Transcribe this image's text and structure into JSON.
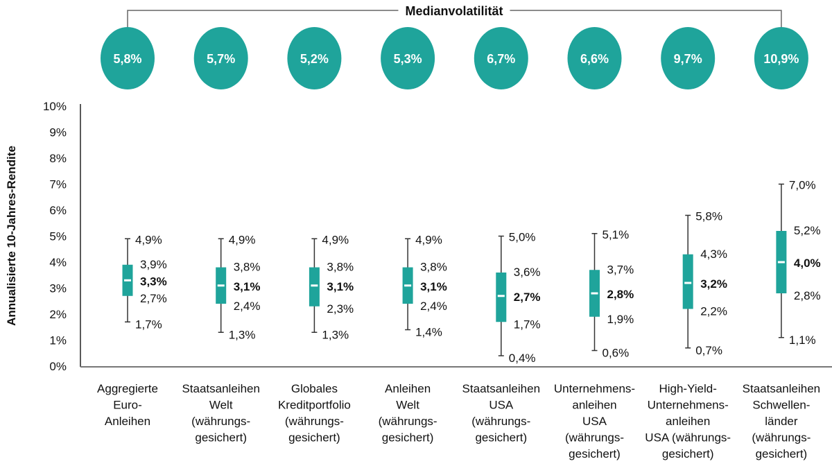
{
  "chart_data": {
    "type": "boxplot",
    "ylabel": "Annualisierte 10-Jahres-Rendite",
    "ylim": [
      0,
      10
    ],
    "yticks": [
      "0%",
      "1%",
      "2%",
      "3%",
      "4%",
      "5%",
      "6%",
      "7%",
      "8%",
      "9%",
      "10%"
    ],
    "grid": false,
    "color": "#1fa49b",
    "volatility_title": "Medianvolatilität",
    "categories": [
      [
        "Aggregierte",
        "Euro-",
        "Anleihen"
      ],
      [
        "Staatsanleihen",
        "Welt",
        "(währungs-",
        "gesichert)"
      ],
      [
        "Globales",
        "Kreditportfolio",
        "(währungs-",
        "gesichert)"
      ],
      [
        "Anleihen",
        "Welt",
        "(währungs-",
        "gesichert)"
      ],
      [
        "Staatsanleihen",
        "USA",
        "(währungs-",
        "gesichert)"
      ],
      [
        "Unternehmens-",
        "anleihen",
        "USA",
        "(währungs-",
        "gesichert)"
      ],
      [
        "High-Yield-",
        "Unternehmens-",
        "anleihen",
        "USA (währungs-",
        "gesichert)"
      ],
      [
        "Staatsanleihen",
        "Schwellen-",
        "länder",
        "(währungs-",
        "gesichert)"
      ]
    ],
    "volatility": [
      "5,8%",
      "5,7%",
      "5,2%",
      "5,3%",
      "6,7%",
      "6,6%",
      "9,7%",
      "10,9%"
    ],
    "series": [
      {
        "min": 1.7,
        "q1": 2.7,
        "median": 3.3,
        "q3": 3.9,
        "max": 4.9,
        "labels": [
          "1,7%",
          "2,7%",
          "3,3%",
          "3,9%",
          "4,9%"
        ]
      },
      {
        "min": 1.3,
        "q1": 2.4,
        "median": 3.1,
        "q3": 3.8,
        "max": 4.9,
        "labels": [
          "1,3%",
          "2,4%",
          "3,1%",
          "3,8%",
          "4,9%"
        ]
      },
      {
        "min": 1.3,
        "q1": 2.3,
        "median": 3.1,
        "q3": 3.8,
        "max": 4.9,
        "labels": [
          "1,3%",
          "2,3%",
          "3,1%",
          "3,8%",
          "4,9%"
        ]
      },
      {
        "min": 1.4,
        "q1": 2.4,
        "median": 3.1,
        "q3": 3.8,
        "max": 4.9,
        "labels": [
          "1,4%",
          "2,4%",
          "3,1%",
          "3,8%",
          "4,9%"
        ]
      },
      {
        "min": 0.4,
        "q1": 1.7,
        "median": 2.7,
        "q3": 3.6,
        "max": 5.0,
        "labels": [
          "0,4%",
          "1,7%",
          "2,7%",
          "3,6%",
          "5,0%"
        ]
      },
      {
        "min": 0.6,
        "q1": 1.9,
        "median": 2.8,
        "q3": 3.7,
        "max": 5.1,
        "labels": [
          "0,6%",
          "1,9%",
          "2,8%",
          "3,7%",
          "5,1%"
        ]
      },
      {
        "min": 0.7,
        "q1": 2.2,
        "median": 3.2,
        "q3": 4.3,
        "max": 5.8,
        "labels": [
          "0,7%",
          "2,2%",
          "3,2%",
          "4,3%",
          "5,8%"
        ]
      },
      {
        "min": 1.1,
        "q1": 2.8,
        "median": 4.0,
        "q3": 5.2,
        "max": 7.0,
        "labels": [
          "1,1%",
          "2,8%",
          "4,0%",
          "5,2%",
          "7,0%"
        ]
      }
    ]
  }
}
